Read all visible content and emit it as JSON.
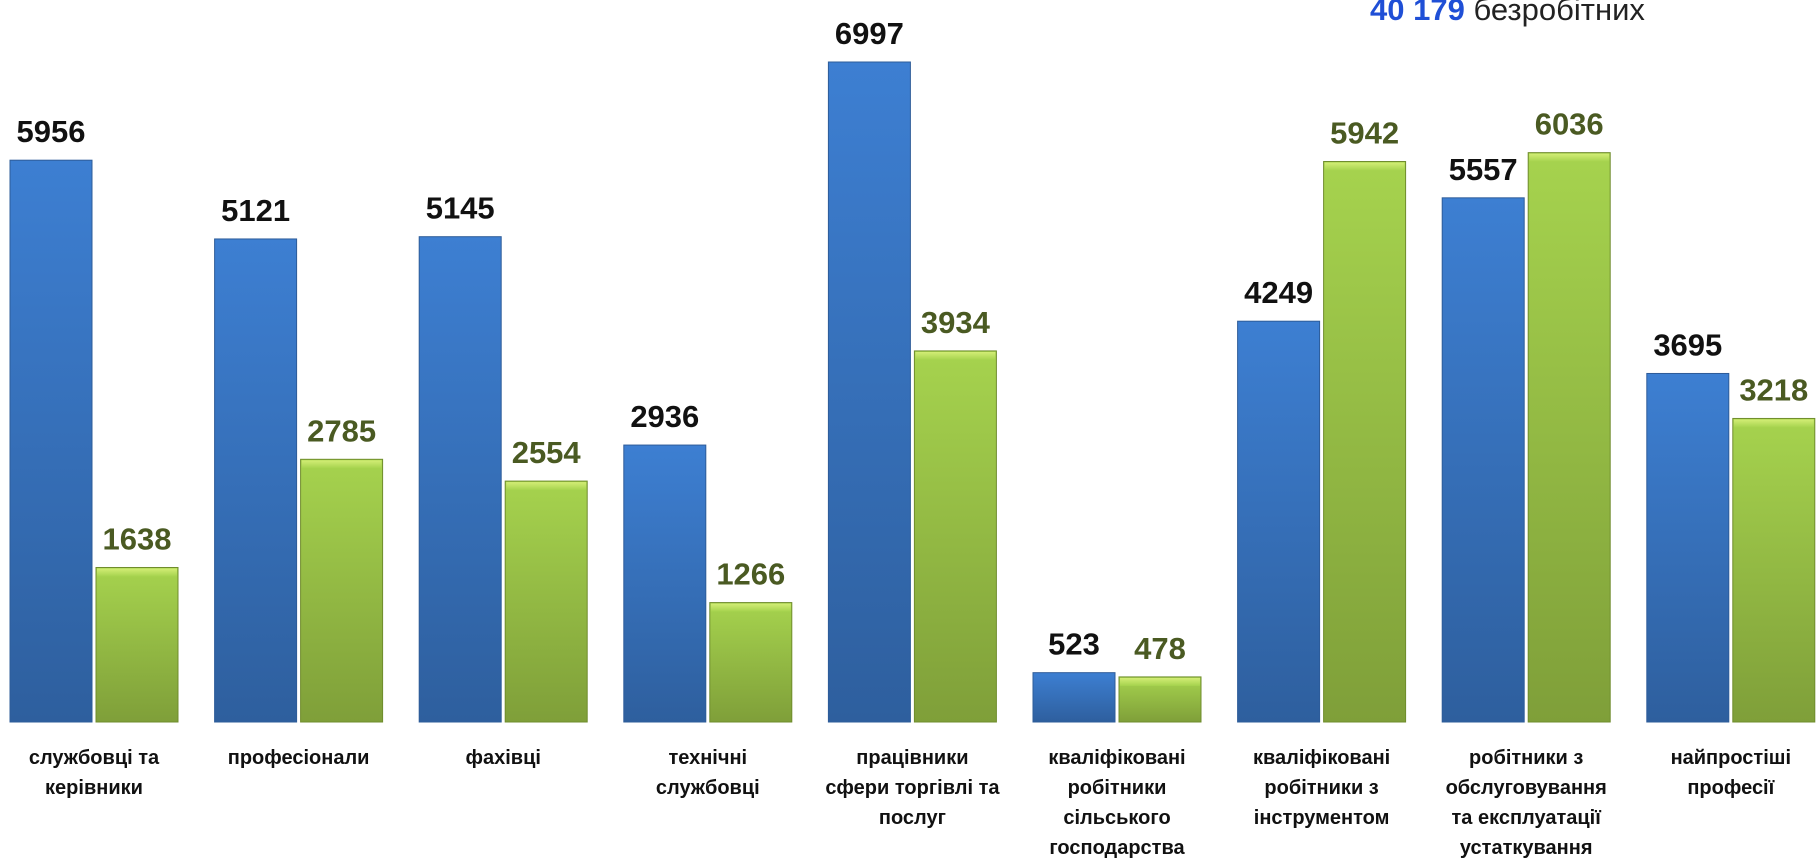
{
  "header": {
    "total_value": "40 179",
    "total_label": "безробітних"
  },
  "colors": {
    "series_blue": "#3a78c9",
    "series_green": "#9bc846",
    "label_green": "#4a5a22",
    "total_blue": "#1f4fd6"
  },
  "chart_data": {
    "type": "bar",
    "categories": [
      [
        "службовці та",
        "керівники"
      ],
      [
        "професіонали"
      ],
      [
        "фахівці"
      ],
      [
        "технічні",
        "службовці"
      ],
      [
        "працівники",
        "сфери торгівлі та",
        "послуг"
      ],
      [
        "кваліфіковані",
        "робітники",
        "сільського",
        "господарства"
      ],
      [
        "кваліфіковані",
        "робітники з",
        "інструментом"
      ],
      [
        "робітники з",
        "обслуговування",
        "та експлуатації",
        "устаткування"
      ],
      [
        "найпростіші",
        "професії"
      ]
    ],
    "series": [
      {
        "values": [
          5956,
          5121,
          5145,
          2936,
          6997,
          523,
          4249,
          5557,
          3695
        ]
      },
      {
        "values": [
          1638,
          2785,
          2554,
          1266,
          3934,
          478,
          5942,
          6036,
          3218
        ]
      }
    ],
    "ylim": [
      0,
      7000
    ],
    "grid": false,
    "legend": "none"
  }
}
